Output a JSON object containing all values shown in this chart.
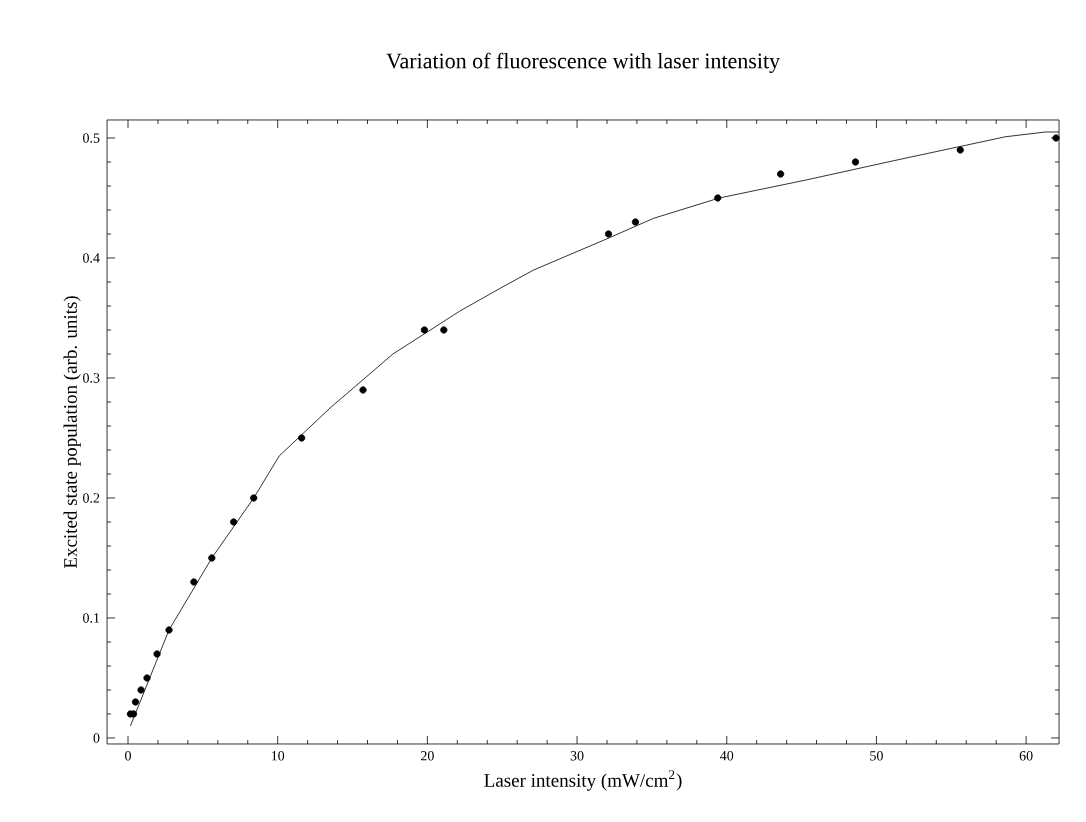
{
  "chart_data": {
    "type": "scatter",
    "title": "Variation of fluorescence with laser intensity",
    "xlabel": "Laser intensity (mW/cm$^{2}$)",
    "ylabel": "Excited state population (arb. units)",
    "xlim": [
      -1.4,
      62.2
    ],
    "ylim": [
      -0.005,
      0.515
    ],
    "xticks": [
      0,
      10,
      20,
      30,
      40,
      50,
      60
    ],
    "yticks": [
      0,
      0.1,
      0.2,
      0.3,
      0.4,
      0.5
    ],
    "series": [
      {
        "marker": "circle",
        "color": "#000000",
        "x": [
          0.16,
          0.37,
          0.5,
          0.87,
          1.27,
          1.94,
          2.74,
          4.4,
          5.6,
          7.06,
          8.4,
          11.6,
          15.7,
          19.8,
          21.1,
          32.1,
          33.9,
          39.4,
          43.6,
          48.6,
          55.6,
          62.0
        ],
        "values": [
          0.02,
          0.02,
          0.03,
          0.04,
          0.05,
          0.07,
          0.09,
          0.13,
          0.15,
          0.18,
          0.2,
          0.25,
          0.29,
          0.34,
          0.34,
          0.42,
          0.43,
          0.45,
          0.47,
          0.48,
          0.49,
          0.5
        ]
      },
      {
        "type": "line",
        "color": "#000000",
        "line_style": "solid",
        "marker": "none",
        "x": [
          0.16,
          2.74,
          5.6,
          8.4,
          10.1,
          13.5,
          17.7,
          22.2,
          24.9,
          27.1,
          32,
          35.1,
          39.5,
          45.3,
          51.5,
          56,
          58.6,
          61.3,
          62.2
        ],
        "values": [
          0.01,
          0.09,
          0.15,
          0.2,
          0.235,
          0.275,
          0.32,
          0.356,
          0.375,
          0.39,
          0.416,
          0.433,
          0.45,
          0.465,
          0.482,
          0.494,
          0.501,
          0.505,
          0.505
        ]
      }
    ]
  }
}
